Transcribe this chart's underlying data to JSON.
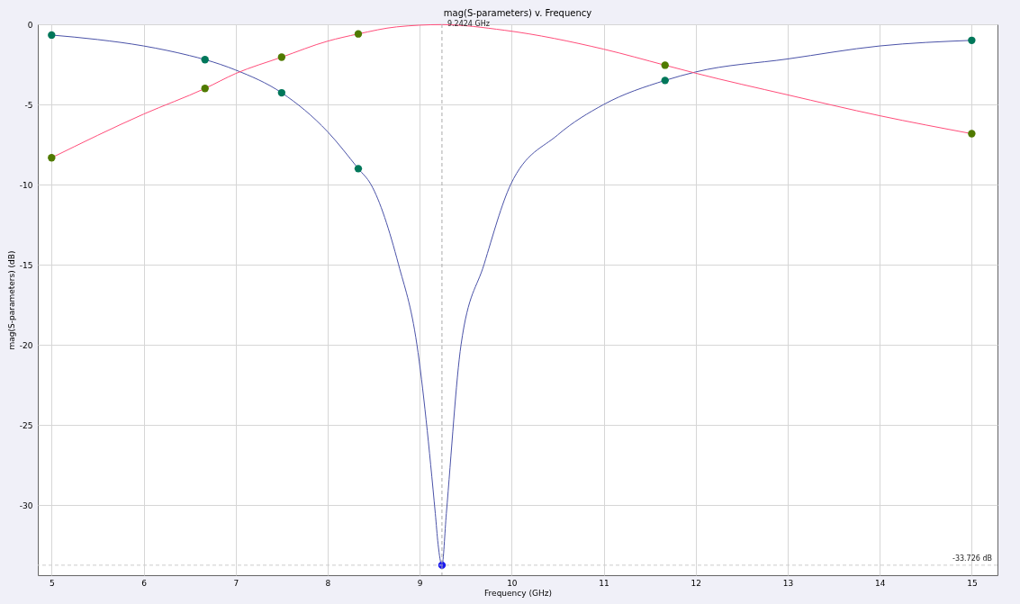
{
  "chart_data": {
    "type": "line",
    "title": "mag(S-parameters) v. Frequency",
    "xlabel": "Frequency (GHz)",
    "ylabel": "mag(S-parameters) (dB)",
    "xlim": [
      4.85,
      15.28
    ],
    "ylim": [
      -34.35,
      0
    ],
    "xticks": [
      5,
      6,
      7,
      8,
      9,
      10,
      11,
      12,
      13,
      14,
      15
    ],
    "yticks": [
      0,
      -5,
      -10,
      -15,
      -20,
      -25,
      -30
    ],
    "grid": true,
    "series": [
      {
        "type": "line",
        "color": "#4a52a8",
        "x": [
          5,
          5.5,
          6,
          6.5,
          6.667,
          7,
          7.5,
          8,
          8.333,
          8.47,
          8.77,
          8.97,
          9.17,
          9.2,
          9.2424,
          9.29,
          9.45,
          9.7,
          9.99,
          10.5,
          11,
          11.667,
          12,
          13,
          14,
          15
        ],
        "values": [
          -0.67,
          -0.95,
          -1.35,
          -1.95,
          -2.2,
          -2.85,
          -4.27,
          -6.7,
          -9.0,
          -9.98,
          -14.97,
          -19.97,
          -30.5,
          -32.4,
          -33.726,
          -30.5,
          -19.97,
          -14.97,
          -9.98,
          -6.9,
          -5.0,
          -3.5,
          -2.97,
          -2.16,
          -1.35,
          -1.0
        ]
      },
      {
        "type": "line",
        "color": "#ff4d7a",
        "x": [
          5,
          6,
          6.667,
          7,
          7.5,
          8,
          8.333,
          8.75,
          9.24,
          9.92,
          11,
          11.667,
          12,
          13,
          14,
          15
        ],
        "values": [
          -8.32,
          -5.6,
          -4.0,
          -3.07,
          -2.05,
          -1.05,
          -0.6,
          -0.16,
          -0.02,
          -0.37,
          -1.55,
          -2.55,
          -3.05,
          -4.4,
          -5.7,
          -6.82
        ]
      },
      {
        "type": "scatter",
        "marker": "circle",
        "color": "#00775a",
        "x": [
          5,
          6.667,
          7.5,
          8.333,
          11.667,
          15
        ],
        "values": [
          -0.67,
          -2.2,
          -4.27,
          -9.0,
          -3.5,
          -1.0
        ]
      },
      {
        "type": "scatter",
        "marker": "circle",
        "color": "#507a00",
        "x": [
          5,
          6.667,
          7.5,
          8.333,
          11.667,
          15
        ],
        "values": [
          -8.32,
          -4.0,
          -2.05,
          -0.6,
          -2.55,
          -6.82
        ]
      },
      {
        "type": "scatter",
        "marker": "circle",
        "color": "#1a1aee",
        "x": [
          9.2424
        ],
        "values": [
          -33.726
        ]
      }
    ],
    "ref_lines": [
      {
        "axis": "x",
        "value": 9.2424,
        "label": "9.2424 GHz",
        "line_style": "dashed",
        "color": "#aaaaaa"
      },
      {
        "axis": "y",
        "value": -33.726,
        "label": "-33.726 dB",
        "line_style": "dashed",
        "color": "#cccccc"
      }
    ]
  }
}
